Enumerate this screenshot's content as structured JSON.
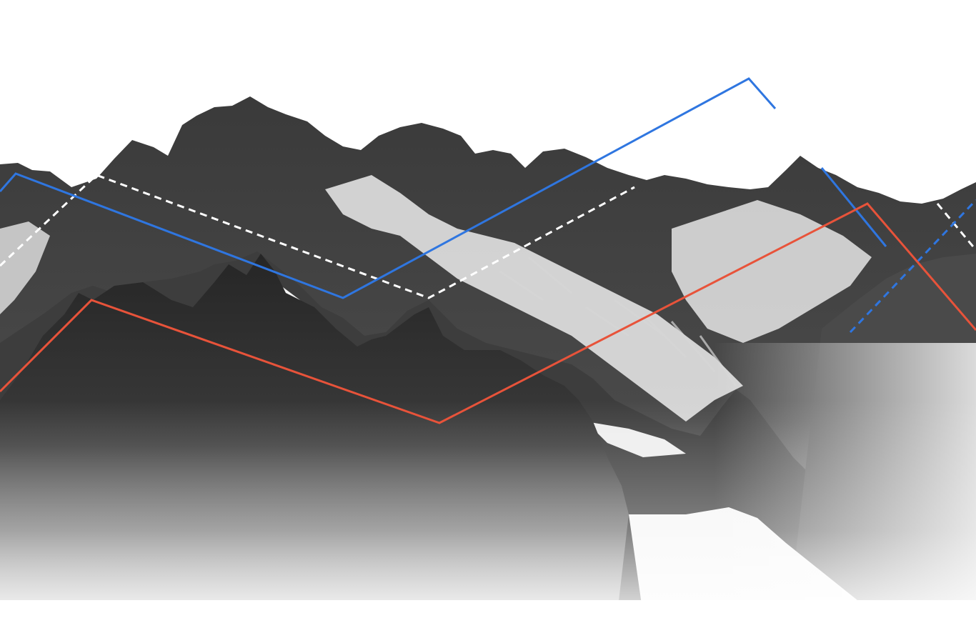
{
  "image": {
    "subject": "mountain-range",
    "palette": {
      "background": "#ffffff",
      "rock_dark": "#2a2a2a",
      "rock_mid": "#5a5a5a",
      "snow": "#f2f2f2",
      "fog": "#ffffff"
    }
  },
  "overlay_lines": [
    {
      "name": "",
      "color": "#2f76e0",
      "style": "solid"
    },
    {
      "name": "",
      "color": "#2f76e0",
      "style": "dashed"
    },
    {
      "name": "",
      "color": "#ffffff",
      "style": "dashed"
    },
    {
      "name": "",
      "color": "#e8533a",
      "style": "solid"
    }
  ]
}
